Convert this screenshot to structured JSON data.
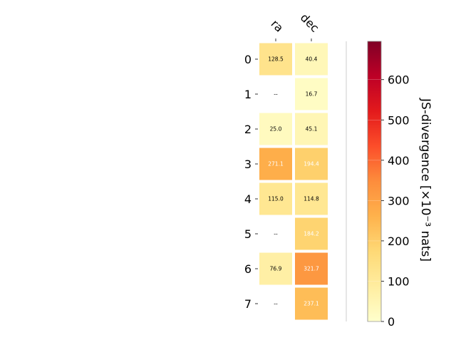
{
  "chart_data": {
    "type": "heatmap",
    "columns": [
      "ra",
      "dec"
    ],
    "rows": [
      "0",
      "1",
      "2",
      "3",
      "4",
      "5",
      "6",
      "7"
    ],
    "values": [
      [
        128.5,
        40.4
      ],
      [
        null,
        16.7
      ],
      [
        25.0,
        45.1
      ],
      [
        271.1,
        194.4
      ],
      [
        115.0,
        114.8
      ],
      [
        null,
        184.2
      ],
      [
        76.9,
        321.7
      ],
      [
        null,
        237.1
      ]
    ],
    "labels": [
      [
        "128.5",
        "40.4"
      ],
      [
        "--",
        "16.7"
      ],
      [
        "25.0",
        "45.1"
      ],
      [
        "271.1",
        "194.4"
      ],
      [
        "115.0",
        "114.8"
      ],
      [
        "--",
        "184.2"
      ],
      [
        "76.9",
        "321.7"
      ],
      [
        "--",
        "237.1"
      ]
    ],
    "colormap": "YlOrRd",
    "vmin": 0,
    "vmax": 695,
    "colorbar": {
      "label": "JS-divergence [×10⁻³ nats]",
      "ticks": [
        0,
        100,
        200,
        300,
        400,
        500,
        600
      ],
      "tick_labels": [
        "0",
        "100",
        "200",
        "300",
        "400",
        "500",
        "600"
      ]
    },
    "annotation_colors": {
      "dark": "#000000",
      "light": "#ffffff"
    },
    "missing_color": "#ffffff"
  }
}
